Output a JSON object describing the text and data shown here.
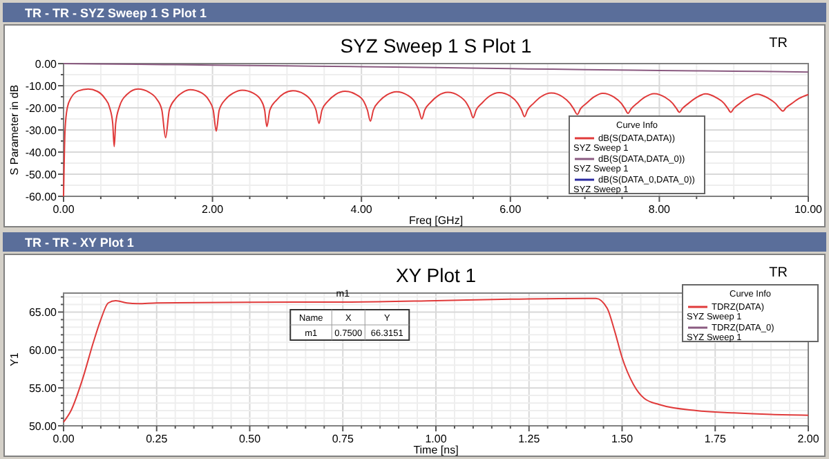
{
  "chart_data": [
    {
      "type": "line",
      "title": "SYZ Sweep 1 S Plot 1",
      "xlabel": "Freq [GHz]",
      "ylabel": "S Parameter in dB",
      "legend_title": "Curve Info",
      "legend": "bottom right",
      "grid": true,
      "marker": "none",
      "line_style": "solid",
      "annotations": [
        "TR - TR - SYZ Sweep 1 S Plot 1",
        "TR"
      ],
      "xlim": [
        0,
        10
      ],
      "ylim": [
        -60,
        0
      ],
      "xticks": [
        {
          "value": 0,
          "label": "0.00"
        },
        {
          "value": 0.5,
          "label": null
        },
        {
          "value": 1,
          "label": null
        },
        {
          "value": 1.5,
          "label": null
        },
        {
          "value": 2,
          "label": "2.00"
        },
        {
          "value": 2.5,
          "label": null
        },
        {
          "value": 3,
          "label": null
        },
        {
          "value": 3.5,
          "label": null
        },
        {
          "value": 4,
          "label": "4.00"
        },
        {
          "value": 4.5,
          "label": null
        },
        {
          "value": 5,
          "label": null
        },
        {
          "value": 5.5,
          "label": null
        },
        {
          "value": 6,
          "label": "6.00"
        },
        {
          "value": 6.5,
          "label": null
        },
        {
          "value": 7,
          "label": null
        },
        {
          "value": 7.5,
          "label": null
        },
        {
          "value": 8,
          "label": "8.00"
        },
        {
          "value": 8.5,
          "label": null
        },
        {
          "value": 9,
          "label": null
        },
        {
          "value": 9.5,
          "label": null
        },
        {
          "value": 10,
          "label": "10.00"
        }
      ],
      "yticks": [
        {
          "value": -60,
          "label": "-60.00"
        },
        {
          "value": -55,
          "label": null
        },
        {
          "value": -50,
          "label": "-50.00"
        },
        {
          "value": -45,
          "label": null
        },
        {
          "value": -40,
          "label": "-40.00"
        },
        {
          "value": -35,
          "label": null
        },
        {
          "value": -30,
          "label": "-30.00"
        },
        {
          "value": -25,
          "label": null
        },
        {
          "value": -20,
          "label": "-20.00"
        },
        {
          "value": -15,
          "label": null
        },
        {
          "value": -10,
          "label": "-10.00"
        },
        {
          "value": -5,
          "label": null
        },
        {
          "value": 0,
          "label": "0.00"
        }
      ],
      "series": [
        {
          "name": "dB(S(DATA,DATA))\nSYZ Sweep 1",
          "color": "#e03a3a",
          "x": [
            0,
            0.02,
            0.05,
            0.1,
            0.2,
            0.33,
            0.45,
            0.55,
            0.62,
            0.66,
            0.68,
            0.7,
            0.75,
            0.85,
            1.0,
            1.15,
            1.25,
            1.32,
            1.37,
            1.42,
            1.5,
            1.6,
            1.7,
            1.85,
            1.95,
            2.01,
            2.05,
            2.09,
            2.18,
            2.28,
            2.4,
            2.55,
            2.65,
            2.7,
            2.73,
            2.77,
            2.86,
            2.96,
            3.08,
            3.23,
            3.33,
            3.39,
            3.43,
            3.47,
            3.55,
            3.65,
            3.78,
            3.93,
            4.03,
            4.08,
            4.12,
            4.16,
            4.24,
            4.34,
            4.47,
            4.62,
            4.72,
            4.77,
            4.81,
            4.85,
            4.93,
            5.03,
            5.16,
            5.31,
            5.41,
            5.46,
            5.5,
            5.54,
            5.62,
            5.72,
            5.85,
            6.0,
            6.1,
            6.15,
            6.19,
            6.23,
            6.31,
            6.41,
            6.55,
            6.7,
            6.8,
            6.85,
            6.9,
            6.94,
            7.02,
            7.12,
            7.24,
            7.39,
            7.49,
            7.54,
            7.58,
            7.62,
            7.7,
            7.8,
            7.93,
            8.08,
            8.18,
            8.23,
            8.27,
            8.31,
            8.39,
            8.49,
            8.62,
            8.77,
            8.87,
            8.92,
            8.96,
            9.0,
            9.08,
            9.18,
            9.31,
            9.46,
            9.56,
            9.61,
            9.66,
            9.7,
            9.78,
            9.88,
            10
          ],
          "values": [
            -60,
            -30,
            -20,
            -15.5,
            -12.3,
            -11.5,
            -12.5,
            -15.5,
            -20,
            -27,
            -37.5,
            -27,
            -19.5,
            -14,
            -11.5,
            -13,
            -16,
            -21,
            -33.5,
            -21,
            -16,
            -13,
            -11.8,
            -13.2,
            -16.5,
            -21,
            -30.5,
            -21,
            -16,
            -13.3,
            -12,
            -13.4,
            -16.5,
            -21,
            -28.5,
            -21,
            -16.5,
            -13.5,
            -12.3,
            -13.8,
            -17,
            -21,
            -27,
            -21,
            -17,
            -14,
            -12.5,
            -14,
            -17,
            -21,
            -26,
            -21,
            -17,
            -14.2,
            -12.7,
            -14.3,
            -17.5,
            -21,
            -25,
            -21,
            -17.5,
            -14.5,
            -13,
            -14.6,
            -17.8,
            -21,
            -24.5,
            -21,
            -17.8,
            -14.7,
            -13.1,
            -14.7,
            -18,
            -21,
            -24,
            -21,
            -18,
            -15,
            -13.3,
            -15,
            -18,
            -20.5,
            -23,
            -20.5,
            -18,
            -15.1,
            -13.4,
            -15.1,
            -18,
            -20.5,
            -22.5,
            -20.5,
            -18,
            -15.3,
            -13.6,
            -15.3,
            -18,
            -20.3,
            -22,
            -20.3,
            -18,
            -15.5,
            -13.7,
            -15.5,
            -18,
            -20.3,
            -22,
            -20.3,
            -18,
            -15.6,
            -13.8,
            -15.6,
            -18,
            -20,
            -21.5,
            -20,
            -18,
            -15.7,
            -14
          ]
        },
        {
          "name": "dB(S(DATA,DATA_0))\nSYZ Sweep 1",
          "color": "#8a5a80",
          "x": [
            0,
            1,
            2,
            3,
            4,
            5,
            6,
            7,
            8,
            9,
            10
          ],
          "values": [
            0,
            -0.3,
            -0.7,
            -1.0,
            -1.4,
            -1.8,
            -2.3,
            -2.7,
            -3.1,
            -3.4,
            -3.8
          ]
        },
        {
          "name": "dB(S(DATA_0,DATA_0))\nSYZ Sweep 1",
          "color": "#2a2aa0"
        }
      ]
    },
    {
      "type": "line",
      "title": "XY Plot 1",
      "xlabel": "Time [ns]",
      "ylabel": "Y1",
      "legend_title": "Curve Info",
      "legend": "top right",
      "grid": true,
      "marker": "none",
      "line_style": "solid",
      "annotations": [
        "TR - TR - XY Plot 1",
        "TR",
        "Name",
        "X",
        "Y",
        "m1",
        "0.7500",
        "66.3151",
        {
          "text": "m1",
          "x": 0.75,
          "y": 66.3151
        }
      ],
      "xlim": [
        0,
        2
      ],
      "ylim": [
        50,
        67.5
      ],
      "xticks": [
        {
          "value": 0,
          "label": "0.00"
        },
        {
          "value": 0.05,
          "label": null
        },
        {
          "value": 0.1,
          "label": null
        },
        {
          "value": 0.15,
          "label": null
        },
        {
          "value": 0.2,
          "label": null
        },
        {
          "value": 0.25,
          "label": "0.25"
        },
        {
          "value": 0.3,
          "label": null
        },
        {
          "value": 0.35,
          "label": null
        },
        {
          "value": 0.4,
          "label": null
        },
        {
          "value": 0.45,
          "label": null
        },
        {
          "value": 0.5,
          "label": "0.50"
        },
        {
          "value": 0.55,
          "label": null
        },
        {
          "value": 0.6,
          "label": null
        },
        {
          "value": 0.65,
          "label": null
        },
        {
          "value": 0.7,
          "label": null
        },
        {
          "value": 0.75,
          "label": "0.75"
        },
        {
          "value": 0.8,
          "label": null
        },
        {
          "value": 0.85,
          "label": null
        },
        {
          "value": 0.9,
          "label": null
        },
        {
          "value": 0.95,
          "label": null
        },
        {
          "value": 1,
          "label": "1.00"
        },
        {
          "value": 1.05,
          "label": null
        },
        {
          "value": 1.1,
          "label": null
        },
        {
          "value": 1.15,
          "label": null
        },
        {
          "value": 1.2,
          "label": null
        },
        {
          "value": 1.25,
          "label": "1.25"
        },
        {
          "value": 1.3,
          "label": null
        },
        {
          "value": 1.35,
          "label": null
        },
        {
          "value": 1.4,
          "label": null
        },
        {
          "value": 1.45,
          "label": null
        },
        {
          "value": 1.5,
          "label": "1.50"
        },
        {
          "value": 1.55,
          "label": null
        },
        {
          "value": 1.6,
          "label": null
        },
        {
          "value": 1.65,
          "label": null
        },
        {
          "value": 1.7,
          "label": null
        },
        {
          "value": 1.75,
          "label": "1.75"
        },
        {
          "value": 1.8,
          "label": null
        },
        {
          "value": 1.85,
          "label": null
        },
        {
          "value": 1.9,
          "label": null
        },
        {
          "value": 1.95,
          "label": null
        },
        {
          "value": 2,
          "label": "2.00"
        }
      ],
      "yticks": [
        {
          "value": 50,
          "label": "50.00"
        },
        {
          "value": 51,
          "label": null
        },
        {
          "value": 52,
          "label": null
        },
        {
          "value": 53,
          "label": null
        },
        {
          "value": 54,
          "label": null
        },
        {
          "value": 55,
          "label": "55.00"
        },
        {
          "value": 56,
          "label": null
        },
        {
          "value": 57,
          "label": null
        },
        {
          "value": 58,
          "label": null
        },
        {
          "value": 59,
          "label": null
        },
        {
          "value": 60,
          "label": "60.00"
        },
        {
          "value": 61,
          "label": null
        },
        {
          "value": 62,
          "label": null
        },
        {
          "value": 63,
          "label": null
        },
        {
          "value": 64,
          "label": null
        },
        {
          "value": 65,
          "label": "65.00"
        },
        {
          "value": 66,
          "label": null
        },
        {
          "value": 67,
          "label": null
        }
      ],
      "series": [
        {
          "name": "TDRZ(DATA)\nSYZ Sweep 1",
          "color": "#e03a3a",
          "x": [
            0,
            0.02,
            0.05,
            0.08,
            0.1,
            0.12,
            0.14,
            0.17,
            0.2,
            0.25,
            0.5,
            0.75,
            1.0,
            1.2,
            1.4,
            1.43,
            1.46,
            1.48,
            1.5,
            1.53,
            1.56,
            1.6,
            1.7,
            1.8,
            1.9,
            2.0
          ],
          "values": [
            50.5,
            52,
            56,
            61,
            64,
            66.2,
            66.5,
            66.2,
            66.1,
            66.2,
            66.3,
            66.3151,
            66.5,
            66.7,
            66.8,
            66.8,
            65.5,
            62.5,
            59,
            55.5,
            53.6,
            52.8,
            52,
            51.7,
            51.5,
            51.4
          ]
        },
        {
          "name": "TDRZ(DATA_0)\nSYZ Sweep 1",
          "color": "#8a5a80"
        }
      ]
    }
  ]
}
